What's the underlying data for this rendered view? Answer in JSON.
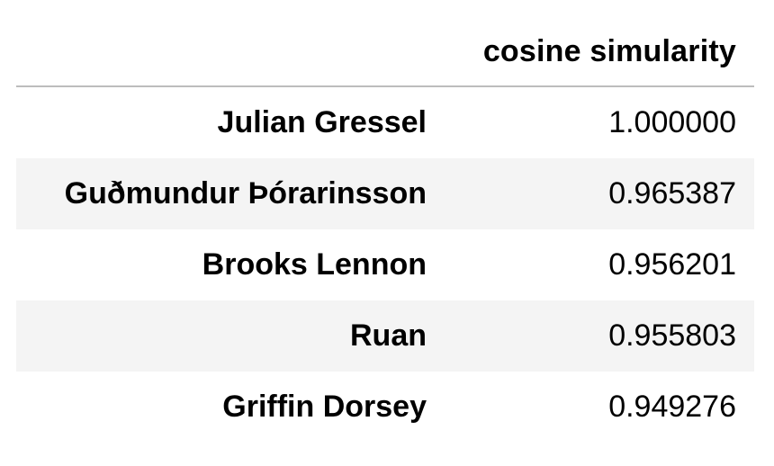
{
  "table": {
    "column_header": "cosine simularity",
    "rows": [
      {
        "name": "Julian Gressel",
        "value": "1.000000"
      },
      {
        "name": "Guðmundur Þórarinsson",
        "value": "0.965387"
      },
      {
        "name": "Brooks Lennon",
        "value": "0.956201"
      },
      {
        "name": "Ruan",
        "value": "0.955803"
      },
      {
        "name": "Griffin Dorsey",
        "value": "0.949276"
      }
    ]
  },
  "colors": {
    "background": "#ffffff",
    "alt_row": "#f4f4f4",
    "header_rule": "#bdbdbd",
    "text": "#000000"
  }
}
